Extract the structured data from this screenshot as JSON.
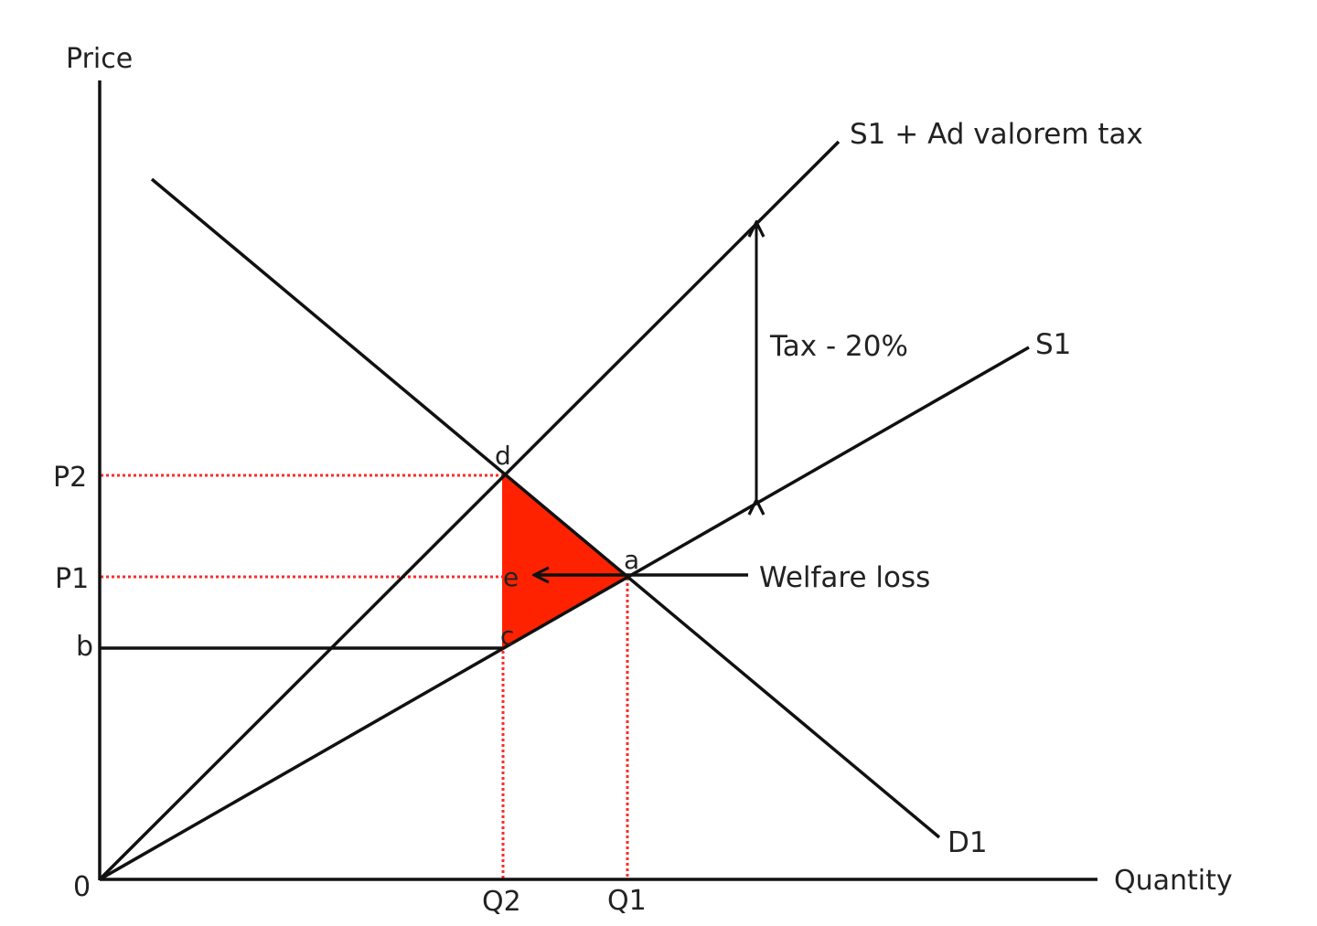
{
  "labels": {
    "y_axis": "Price",
    "x_axis": "Quantity",
    "origin": "0",
    "p2": "P2",
    "p1": "P1",
    "b": "b",
    "q2": "Q2",
    "q1": "Q1",
    "point_d": "d",
    "point_e": "e",
    "point_c": "c",
    "point_a": "a",
    "curve_s1_tax": "S1 + Ad valorem tax",
    "curve_s1": "S1",
    "curve_d1": "D1",
    "tax_arrow": "Tax - 20%",
    "welfare": "Welfare loss"
  },
  "colors": {
    "line": "#111111",
    "guide": "#ff2a2a",
    "welfare_fill": "#ff2200"
  }
}
